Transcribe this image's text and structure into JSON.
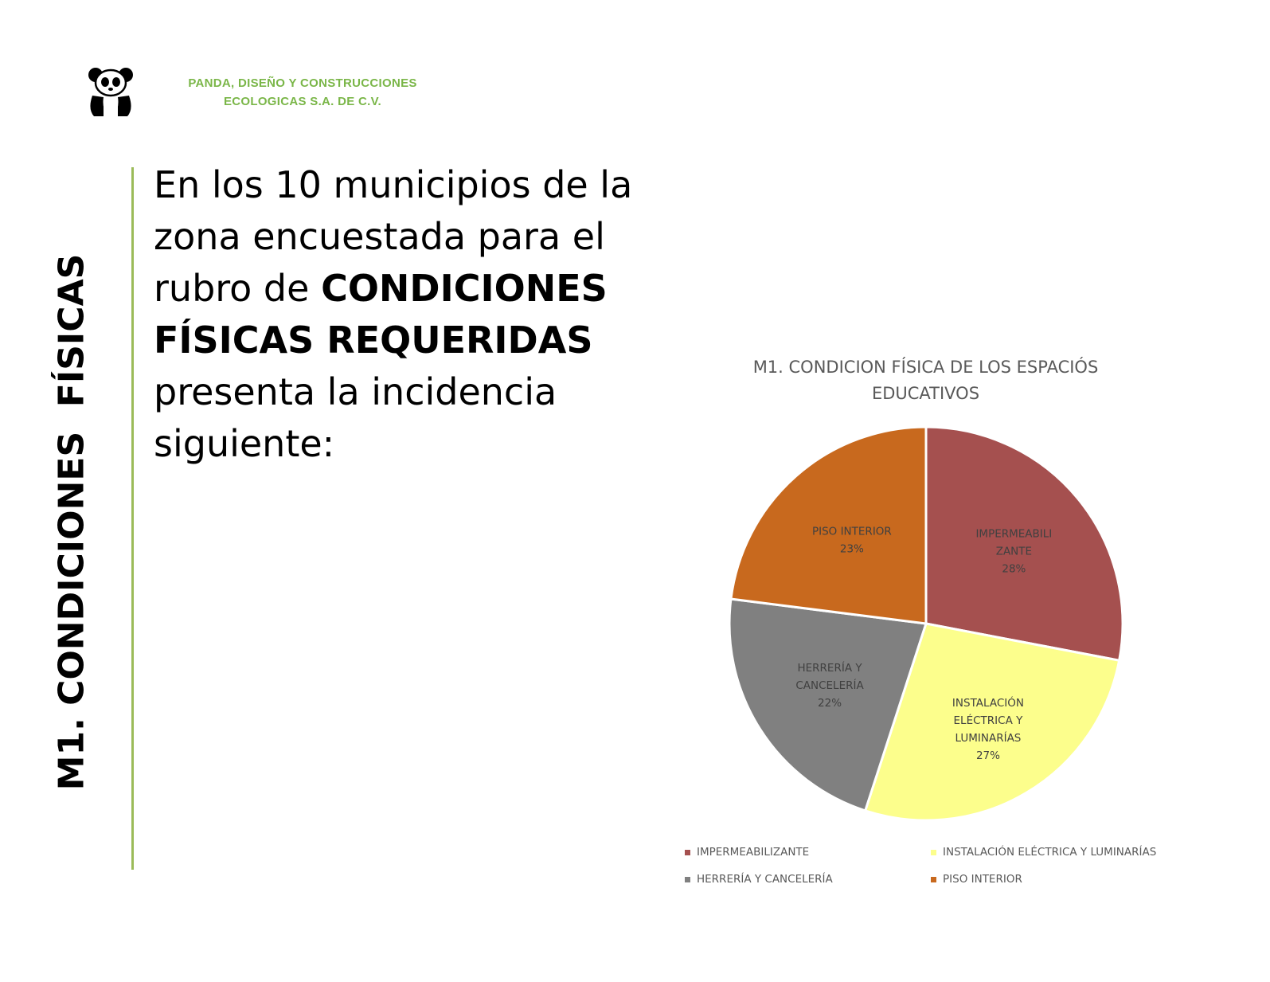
{
  "header": {
    "company_line1": "PANDA, DISEÑO Y CONSTRUCCIONES",
    "company_line2": "ECOLOGICAS S.A. DE C.V.",
    "logo_icon": "panda-logo-icon"
  },
  "side_title": "M1. CONDICIONES  FÍSICAS",
  "body": {
    "line1": "En los 10 municipios de la",
    "line2": "zona encuestada para el",
    "line3_pre": "rubro de ",
    "line3_bold": "CONDICIONES",
    "line4_bold": "FÍSICAS REQUERIDAS",
    "line5": "presenta la incidencia",
    "line6": "siguiente:"
  },
  "colors": {
    "accent_green": "#9bbb59",
    "company_green": "#7ab648"
  },
  "chart_data": {
    "type": "pie",
    "title_line1": "M1. CONDICION FÍSICA DE LOS ESPACIÓS",
    "title_line2": "EDUCATIVOS",
    "slices": [
      {
        "name": "IMPERMEABILIZANTE",
        "label_lines": [
          "IMPERMEABILI",
          "ZANTE",
          "28%"
        ],
        "value": 28,
        "color": "#a5504f"
      },
      {
        "name": "INSTALACIÓN ELÉCTRICA Y LUMINARÍAS",
        "label_lines": [
          "INSTALACIÓN",
          "ELÉCTRICA Y",
          "LUMINARÍAS",
          "27%"
        ],
        "value": 27,
        "color": "#fcfe8c"
      },
      {
        "name": "HERRERÍA Y CANCELERÍA",
        "label_lines": [
          "HERRERÍA Y",
          "CANCELERÍA",
          "22%"
        ],
        "value": 22,
        "color": "#808080"
      },
      {
        "name": "PISO INTERIOR",
        "label_lines": [
          "PISO INTERIOR",
          "23%"
        ],
        "value": 23,
        "color": "#c8691e"
      }
    ],
    "legend_placement": "bottom"
  }
}
